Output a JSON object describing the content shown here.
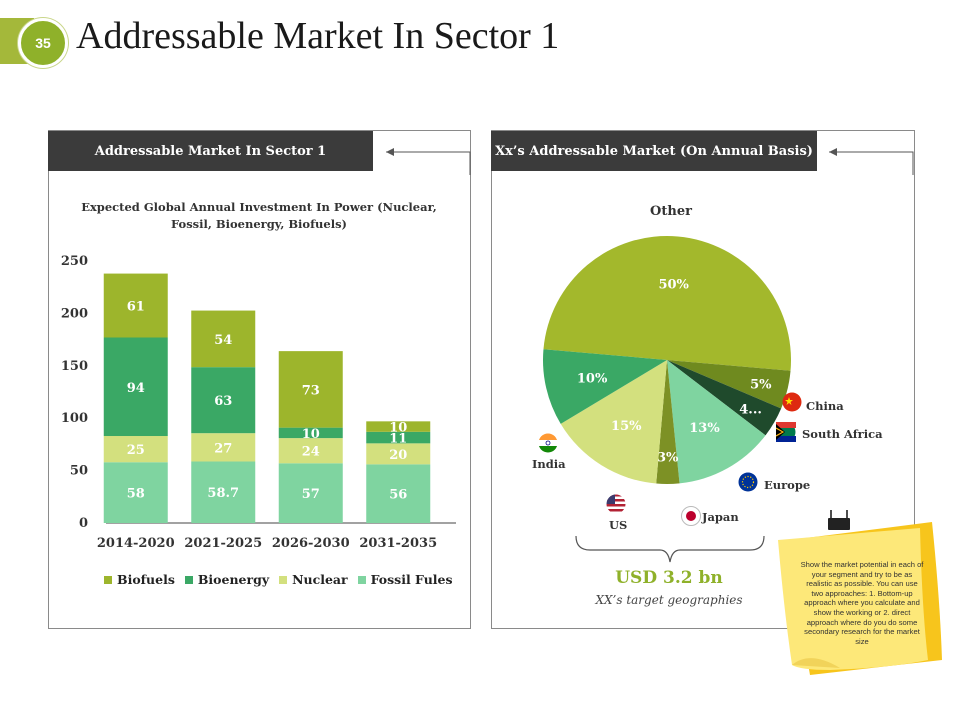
{
  "slide_number": "35",
  "page_title": "Addressable Market In Sector 1",
  "left_panel": {
    "header": "Addressable Market In Sector 1"
  },
  "right_panel": {
    "header": "Xx’s Addressable Market (On Annual Basis)"
  },
  "colors": {
    "biofuels": "#9db52c",
    "bioenergy": "#3aa865",
    "nuclear": "#d3e07e",
    "fossil": "#7fd4a0",
    "header_dark": "#3b3b3b",
    "accent": "#8fb12a"
  },
  "chart_data": [
    {
      "type": "bar",
      "stacked": true,
      "title": "Expected Global Annual Investment In Power (Nuclear, Fossil, Bioenergy, Biofuels)",
      "categories": [
        "2014-2020",
        "2021-2025",
        "2026-2030",
        "2031-2035"
      ],
      "series": [
        {
          "name": "Fossil Fules",
          "values": [
            58,
            58.7,
            57,
            56
          ]
        },
        {
          "name": "Nuclear",
          "values": [
            25,
            27,
            24,
            20
          ]
        },
        {
          "name": "Bioenergy",
          "values": [
            94,
            63,
            10,
            11
          ]
        },
        {
          "name": "Biofuels",
          "values": [
            61,
            54,
            73,
            10
          ]
        }
      ],
      "ylim": [
        0,
        250
      ],
      "yticks": [
        0,
        50,
        100,
        150,
        200,
        250
      ],
      "legend_order": [
        "Biofuels",
        "Bioenergy",
        "Nuclear",
        "Fossil Fules"
      ],
      "legend_position": "bottom",
      "xlabel": "",
      "ylabel": ""
    },
    {
      "type": "pie",
      "title": "Other",
      "slices": [
        {
          "label": "Other",
          "value": 50,
          "text": "50%",
          "color": "#a3b82c"
        },
        {
          "label": "China",
          "value": 5,
          "text": "5%",
          "color": "#6f8a1f"
        },
        {
          "label": "South Africa",
          "value": 4,
          "text": "4...",
          "color": "#1f4a2c"
        },
        {
          "label": "Europe",
          "value": 13,
          "text": "13%",
          "color": "#7fd4a0"
        },
        {
          "label": "Japan",
          "value": 3,
          "text": "3%",
          "color": "#7d9125"
        },
        {
          "label": "US",
          "value": 15,
          "text": "15%",
          "color": "#d3e07e"
        },
        {
          "label": "India",
          "value": 10,
          "text": "10%",
          "color": "#3aa865"
        }
      ]
    }
  ],
  "geographies": {
    "china": "China",
    "south_africa": "South Africa",
    "europe": "Europe",
    "japan": "Japan",
    "us": "US",
    "india": "India"
  },
  "summary": {
    "value": "USD 3.2 bn",
    "caption": "XX’s target geographies"
  },
  "sticky_note": {
    "text": "Show the market potential in each of your segment and try to be as realistic as possible. You can use two approaches: 1. Bottom-up approach where you calculate and show the working or 2. direct approach where do you do some secondary research for the market size"
  }
}
